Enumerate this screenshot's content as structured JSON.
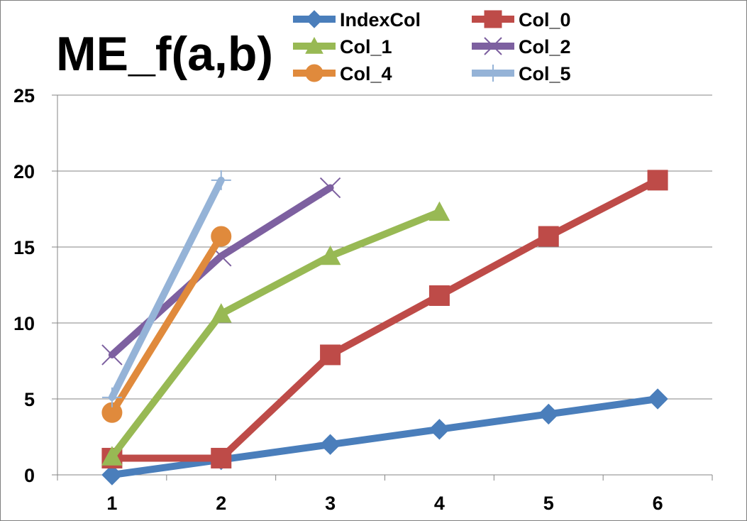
{
  "chart_data": {
    "type": "line",
    "title": "ME_f(a,b)",
    "xlabel": "",
    "ylabel": "",
    "categories": [
      "1",
      "2",
      "3",
      "4",
      "5",
      "6"
    ],
    "ylim": [
      0,
      25
    ],
    "yticks": [
      0,
      5,
      10,
      15,
      20,
      25
    ],
    "grid": "horizontal",
    "legend_position": "top",
    "series": [
      {
        "name": "IndexCol",
        "color": "#4a7ebb",
        "marker": "diamond",
        "values": [
          0,
          1,
          2,
          3,
          4,
          5
        ]
      },
      {
        "name": "Col_0",
        "color": "#be4b48",
        "marker": "square",
        "values": [
          1.1,
          1.1,
          7.9,
          11.8,
          15.7,
          19.4
        ]
      },
      {
        "name": "Col_1",
        "color": "#98b954",
        "marker": "triangle",
        "values": [
          1.2,
          10.6,
          14.4,
          17.3,
          null,
          null
        ]
      },
      {
        "name": "Col_2",
        "color": "#7d60a0",
        "marker": "x",
        "values": [
          7.9,
          14.4,
          18.9,
          null,
          null,
          null
        ]
      },
      {
        "name": "Col_4",
        "color": "#e08a3c",
        "marker": "circle",
        "values": [
          4.1,
          15.7,
          null,
          null,
          null,
          null
        ]
      },
      {
        "name": "Col_5",
        "color": "#95b3d7",
        "marker": "plus",
        "values": [
          5.1,
          19.4,
          null,
          null,
          null,
          null
        ]
      }
    ]
  }
}
